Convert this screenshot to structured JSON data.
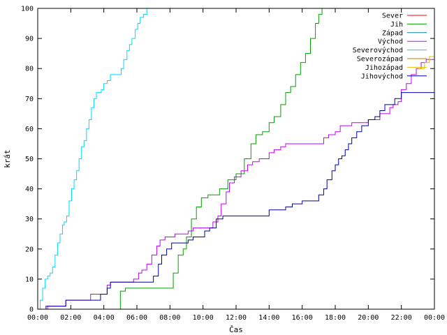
{
  "chart_data": {
    "type": "line",
    "title": "",
    "xlabel": "Čas",
    "ylabel": "krát",
    "xlim": [
      0,
      24
    ],
    "ylim": [
      0,
      100
    ],
    "x_ticks": [
      0,
      2,
      4,
      6,
      8,
      10,
      12,
      14,
      16,
      18,
      20,
      22,
      24
    ],
    "x_tick_labels": [
      "00:00",
      "02:00",
      "04:00",
      "06:00",
      "08:00",
      "10:00",
      "12:00",
      "14:00",
      "16:00",
      "18:00",
      "20:00",
      "22:00",
      "00:00"
    ],
    "y_ticks": [
      0,
      10,
      20,
      30,
      40,
      50,
      60,
      70,
      80,
      90,
      100
    ],
    "grid": false,
    "legend_position": "top-right",
    "series": [
      {
        "name": "Sever",
        "color": "#ff0000",
        "points": []
      },
      {
        "name": "Jih",
        "color": "#00a000",
        "points": [
          [
            4.8,
            0
          ],
          [
            5.0,
            6
          ],
          [
            5.3,
            7
          ],
          [
            6.0,
            7
          ],
          [
            7.0,
            7
          ],
          [
            8.1,
            7
          ],
          [
            8.2,
            12
          ],
          [
            8.5,
            18
          ],
          [
            8.8,
            20
          ],
          [
            9.0,
            24
          ],
          [
            9.3,
            30
          ],
          [
            9.6,
            34
          ],
          [
            9.9,
            37
          ],
          [
            10.3,
            38
          ],
          [
            10.8,
            38
          ],
          [
            11.0,
            40
          ],
          [
            11.5,
            43
          ],
          [
            12.0,
            45
          ],
          [
            12.5,
            50
          ],
          [
            12.9,
            55
          ],
          [
            13.2,
            58
          ],
          [
            13.6,
            59
          ],
          [
            14.0,
            62
          ],
          [
            14.3,
            64
          ],
          [
            14.7,
            68
          ],
          [
            15.0,
            72
          ],
          [
            15.3,
            74
          ],
          [
            15.6,
            78
          ],
          [
            15.9,
            82
          ],
          [
            16.2,
            85
          ],
          [
            16.5,
            90
          ],
          [
            16.8,
            95
          ],
          [
            17.0,
            98
          ],
          [
            17.2,
            100
          ]
        ]
      },
      {
        "name": "Západ",
        "color": "#0080a0",
        "points": []
      },
      {
        "name": "Východ",
        "color": "#c000ff",
        "points": [
          [
            0.0,
            0
          ],
          [
            0.6,
            1
          ],
          [
            1.5,
            1
          ],
          [
            1.7,
            3
          ],
          [
            3.0,
            3
          ],
          [
            3.2,
            5
          ],
          [
            4.0,
            5
          ],
          [
            4.2,
            8
          ],
          [
            4.4,
            9
          ],
          [
            5.5,
            9
          ],
          [
            5.8,
            10
          ],
          [
            6.1,
            12
          ],
          [
            6.3,
            13
          ],
          [
            6.6,
            15
          ],
          [
            6.9,
            18
          ],
          [
            7.2,
            21
          ],
          [
            7.4,
            23
          ],
          [
            7.7,
            24
          ],
          [
            8.1,
            24
          ],
          [
            8.3,
            25
          ],
          [
            8.8,
            25
          ],
          [
            9.1,
            26
          ],
          [
            9.4,
            27
          ],
          [
            10.3,
            27
          ],
          [
            10.6,
            29
          ],
          [
            10.9,
            31
          ],
          [
            11.1,
            35
          ],
          [
            11.4,
            39
          ],
          [
            11.6,
            42
          ],
          [
            11.9,
            44
          ],
          [
            12.3,
            46
          ],
          [
            12.7,
            48
          ],
          [
            13.0,
            49
          ],
          [
            13.4,
            50
          ],
          [
            13.8,
            50
          ],
          [
            14.0,
            52
          ],
          [
            14.3,
            53
          ],
          [
            14.7,
            54
          ],
          [
            15.0,
            55
          ],
          [
            17.0,
            55
          ],
          [
            17.3,
            57
          ],
          [
            17.6,
            58
          ],
          [
            18.0,
            59
          ],
          [
            18.3,
            61
          ],
          [
            18.6,
            61
          ],
          [
            19.0,
            62
          ],
          [
            19.5,
            62
          ],
          [
            20.0,
            63
          ],
          [
            20.4,
            63
          ],
          [
            20.7,
            65
          ],
          [
            21.0,
            65
          ],
          [
            21.3,
            67
          ],
          [
            21.5,
            68
          ],
          [
            21.8,
            69
          ],
          [
            22.0,
            73
          ],
          [
            22.3,
            75
          ],
          [
            22.6,
            78
          ],
          [
            22.9,
            80
          ],
          [
            23.2,
            82
          ],
          [
            23.5,
            83
          ],
          [
            24.0,
            84
          ]
        ]
      },
      {
        "name": "Severovýchod",
        "color": "#00d8ff",
        "points": [
          [
            0.0,
            0
          ],
          [
            0.15,
            3
          ],
          [
            0.3,
            7
          ],
          [
            0.45,
            10
          ],
          [
            0.6,
            11
          ],
          [
            0.75,
            12
          ],
          [
            0.9,
            14
          ],
          [
            1.05,
            18
          ],
          [
            1.2,
            22
          ],
          [
            1.35,
            25
          ],
          [
            1.5,
            28
          ],
          [
            1.6,
            29
          ],
          [
            1.75,
            31
          ],
          [
            1.9,
            36
          ],
          [
            2.05,
            40
          ],
          [
            2.2,
            43
          ],
          [
            2.35,
            46
          ],
          [
            2.5,
            50
          ],
          [
            2.65,
            54
          ],
          [
            2.8,
            56
          ],
          [
            2.95,
            60
          ],
          [
            3.1,
            63
          ],
          [
            3.25,
            67
          ],
          [
            3.4,
            70
          ],
          [
            3.55,
            72
          ],
          [
            3.7,
            72
          ],
          [
            3.85,
            73
          ],
          [
            4.0,
            75
          ],
          [
            4.2,
            76
          ],
          [
            4.4,
            78
          ],
          [
            4.9,
            78
          ],
          [
            5.05,
            80
          ],
          [
            5.2,
            83
          ],
          [
            5.4,
            86
          ],
          [
            5.55,
            88
          ],
          [
            5.7,
            90
          ],
          [
            5.9,
            93
          ],
          [
            6.05,
            95
          ],
          [
            6.2,
            97
          ],
          [
            6.4,
            98
          ],
          [
            6.6,
            100
          ]
        ]
      },
      {
        "name": "Severozápad",
        "color": "#c08000",
        "points": []
      },
      {
        "name": "Jihozápad",
        "color": "#e0c000",
        "points": [
          [
            23.0,
            80
          ],
          [
            23.4,
            82
          ],
          [
            23.7,
            84
          ],
          [
            24.0,
            84
          ]
        ]
      },
      {
        "name": "Jihovýchod",
        "color": "#0000a0",
        "points": [
          [
            0.0,
            0
          ],
          [
            0.5,
            1
          ],
          [
            1.5,
            1
          ],
          [
            1.7,
            3
          ],
          [
            3.5,
            3
          ],
          [
            3.8,
            5
          ],
          [
            4.2,
            7
          ],
          [
            4.4,
            9
          ],
          [
            6.8,
            9
          ],
          [
            7.0,
            11
          ],
          [
            7.3,
            15
          ],
          [
            7.5,
            18
          ],
          [
            7.8,
            20
          ],
          [
            8.1,
            22
          ],
          [
            8.8,
            22
          ],
          [
            9.1,
            23
          ],
          [
            9.4,
            24
          ],
          [
            9.8,
            24
          ],
          [
            10.1,
            26
          ],
          [
            10.4,
            27
          ],
          [
            10.8,
            30
          ],
          [
            11.2,
            31
          ],
          [
            13.8,
            31
          ],
          [
            14.0,
            33
          ],
          [
            15.0,
            34
          ],
          [
            15.4,
            35
          ],
          [
            16.0,
            36
          ],
          [
            16.8,
            36
          ],
          [
            17.0,
            38
          ],
          [
            17.3,
            40
          ],
          [
            17.5,
            43
          ],
          [
            17.8,
            46
          ],
          [
            18.0,
            48
          ],
          [
            18.2,
            50
          ],
          [
            18.4,
            51
          ],
          [
            18.6,
            53
          ],
          [
            18.8,
            55
          ],
          [
            19.0,
            57
          ],
          [
            19.3,
            59
          ],
          [
            19.6,
            61
          ],
          [
            20.0,
            63
          ],
          [
            20.4,
            64
          ],
          [
            20.7,
            66
          ],
          [
            21.0,
            68
          ],
          [
            21.3,
            68
          ],
          [
            21.6,
            70
          ],
          [
            22.0,
            72
          ],
          [
            24.0,
            72
          ]
        ]
      }
    ]
  }
}
